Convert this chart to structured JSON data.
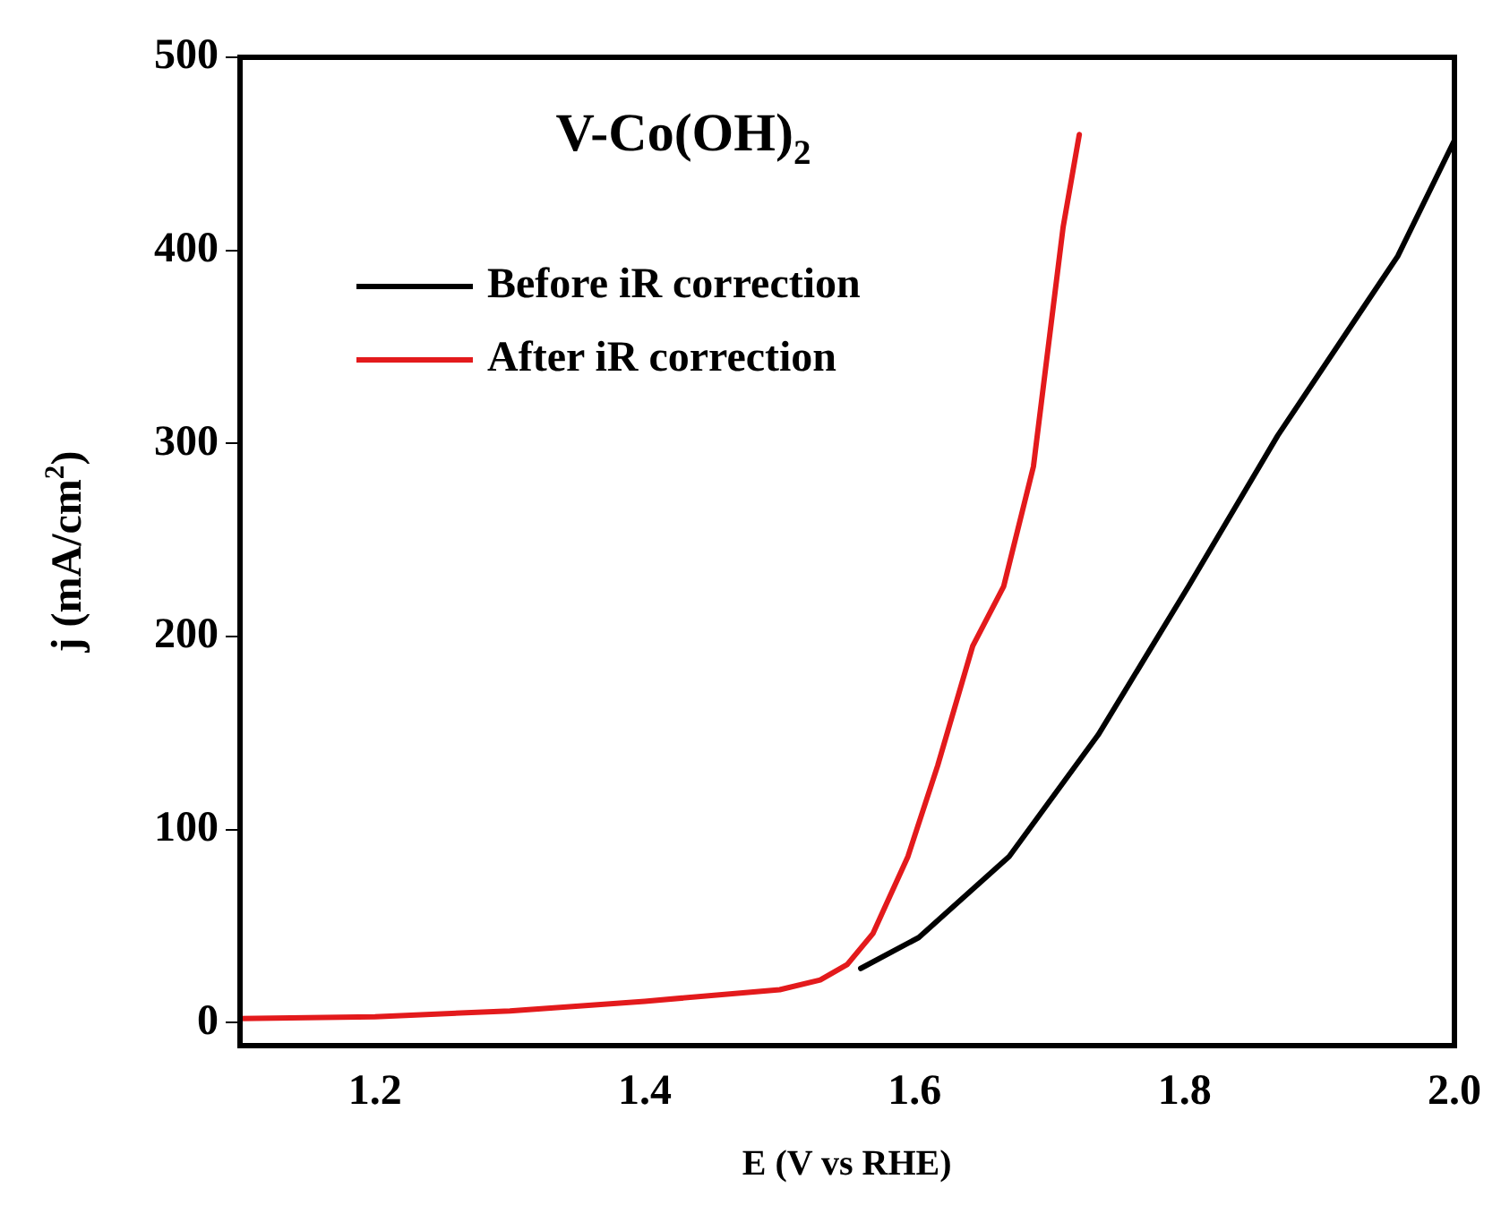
{
  "chart_data": {
    "type": "line",
    "title": "V-Co(OH)$_{2}$",
    "xlabel": "E (V vs RHE)",
    "ylabel": "j (mA/cm$^{2}$)",
    "xlim": [
      1.1,
      2.0
    ],
    "xticks": [
      1.2,
      1.4,
      1.6,
      1.8,
      {
        "value": 2.0,
        "label": "2.0"
      }
    ],
    "ylim": [
      -12,
      500
    ],
    "yticks": [
      0,
      100,
      200,
      300,
      400,
      500
    ],
    "grid": false,
    "legend": "top left",
    "marker": "none",
    "line_style": "solid",
    "series": [
      {
        "name": "Before iR correction",
        "color": "#000000",
        "x": [
          1.56,
          1.603,
          1.67,
          1.736,
          1.803,
          1.869,
          1.958,
          2.0
        ],
        "values": [
          28,
          44,
          86,
          149,
          226,
          304,
          397,
          457
        ]
      },
      {
        "name": "After iR correction",
        "color": "#e31a1c",
        "x": [
          1.1,
          1.2,
          1.3,
          1.4,
          1.5,
          1.53,
          1.55,
          1.569,
          1.595,
          1.617,
          1.643,
          1.666,
          1.688,
          1.71,
          1.722
        ],
        "values": [
          2,
          3,
          6,
          11,
          17,
          22,
          30,
          46,
          86,
          133,
          195,
          226,
          288,
          412,
          460
        ]
      }
    ]
  }
}
